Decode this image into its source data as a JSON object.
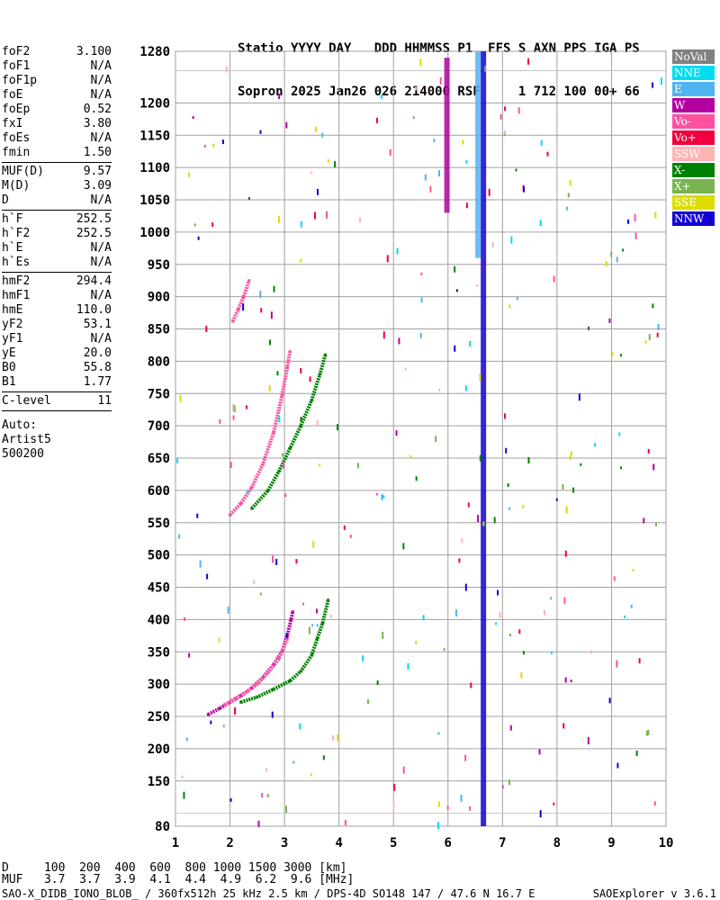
{
  "header": {
    "line1": "Statio YYYY DAY   DDD HHMMSS P1  FFS S AXN PPS IGA PS",
    "line2": "Sopron 2025 Jan26 026 214000 RSF     1 712 100 00+ 66"
  },
  "params": [
    {
      "k": "foF2",
      "v": "3.100"
    },
    {
      "k": "foF1",
      "v": "N/A"
    },
    {
      "k": "foF1p",
      "v": "N/A"
    },
    {
      "k": "foE",
      "v": "N/A"
    },
    {
      "k": "foEp",
      "v": "0.52"
    },
    {
      "k": "fxI",
      "v": "3.80"
    },
    {
      "k": "foEs",
      "v": "N/A"
    },
    {
      "k": "fmin",
      "v": "1.50"
    },
    {
      "k": "MUF(D)",
      "v": "9.57"
    },
    {
      "k": "M(D)",
      "v": "3.09"
    },
    {
      "k": "D",
      "v": "N/A"
    },
    {
      "k": "h`F",
      "v": "252.5"
    },
    {
      "k": "h`F2",
      "v": "252.5"
    },
    {
      "k": "h`E",
      "v": "N/A"
    },
    {
      "k": "h`Es",
      "v": "N/A"
    },
    {
      "k": "hmF2",
      "v": "294.4"
    },
    {
      "k": "hmF1",
      "v": "N/A"
    },
    {
      "k": "hmE",
      "v": "110.0"
    },
    {
      "k": "yF2",
      "v": "53.1"
    },
    {
      "k": "yF1",
      "v": "N/A"
    },
    {
      "k": "yE",
      "v": "20.0"
    },
    {
      "k": "B0",
      "v": "55.8"
    },
    {
      "k": "B1",
      "v": "1.77"
    },
    {
      "k": "C-level",
      "v": "11"
    }
  ],
  "auto": {
    "l1": "Auto:",
    "l2": "Artist5",
    "l3": "500200"
  },
  "legend": [
    {
      "label": "NoVal",
      "color": "#808080"
    },
    {
      "label": "NNE",
      "color": "#00dcf0"
    },
    {
      "label": "E",
      "color": "#50b4f0"
    },
    {
      "label": "W",
      "color": "#b400a0"
    },
    {
      "label": "Vo-",
      "color": "#ff50a0"
    },
    {
      "label": "Vo+",
      "color": "#f0003c"
    },
    {
      "label": "SSW",
      "color": "#ffb4b4"
    },
    {
      "label": "X-",
      "color": "#008200"
    },
    {
      "label": "X+",
      "color": "#78b450"
    },
    {
      "label": "SSE",
      "color": "#dcdc00"
    },
    {
      "label": "NNW",
      "color": "#1400d2"
    }
  ],
  "footer": {
    "line_d": "D     100  200  400  600  800 1000 1500 3000 [km]",
    "line_muf": "MUF   3.7  3.7  3.9  4.1  4.4  4.9  6.2  9.6 [MHz]",
    "line_info": "SAO-X_DIDB_IONO_BLOB_ / 360fx512h 25 kHz 2.5 km / DPS-4D SO148 147 / 47.6 N 16.7 E",
    "version": "SAOExplorer v 3.6.1"
  },
  "chart_data": {
    "type": "scatter",
    "xlim": [
      1,
      10
    ],
    "ylim": [
      80,
      1280
    ],
    "x_ticks": [
      "1",
      "2",
      "3",
      "4",
      "5",
      "6",
      "7",
      "8",
      "9",
      "10"
    ],
    "y_ticks": [
      "80",
      "150",
      "200",
      "250",
      "300",
      "350",
      "400",
      "450",
      "500",
      "550",
      "600",
      "650",
      "700",
      "750",
      "800",
      "850",
      "900",
      "950",
      "1000",
      "1050",
      "1100",
      "1150",
      "1200",
      "1280"
    ],
    "grid": true,
    "traces": [
      {
        "name": "O-trace F2 low",
        "color": "#b400a0",
        "points": [
          [
            1.6,
            253
          ],
          [
            1.8,
            262
          ],
          [
            2.0,
            272
          ],
          [
            2.2,
            282
          ],
          [
            2.4,
            294
          ],
          [
            2.6,
            310
          ],
          [
            2.8,
            330
          ],
          [
            2.95,
            350
          ],
          [
            3.05,
            375
          ],
          [
            3.12,
            400
          ],
          [
            3.15,
            412
          ]
        ]
      },
      {
        "name": "O-trace F2 low inner",
        "color": "#ff50a0",
        "points": [
          [
            1.9,
            268
          ],
          [
            2.1,
            278
          ],
          [
            2.3,
            288
          ],
          [
            2.5,
            300
          ],
          [
            2.7,
            318
          ],
          [
            2.9,
            340
          ],
          [
            3.05,
            370
          ]
        ]
      },
      {
        "name": "X-trace F2 low",
        "color": "#008200",
        "points": [
          [
            2.2,
            272
          ],
          [
            2.5,
            280
          ],
          [
            2.8,
            292
          ],
          [
            3.1,
            305
          ],
          [
            3.3,
            320
          ],
          [
            3.5,
            345
          ],
          [
            3.6,
            370
          ],
          [
            3.7,
            395
          ],
          [
            3.8,
            430
          ]
        ]
      },
      {
        "name": "O-trace F2 mid",
        "color": "#ff50a0",
        "points": [
          [
            2.0,
            562
          ],
          [
            2.2,
            580
          ],
          [
            2.4,
            605
          ],
          [
            2.6,
            640
          ],
          [
            2.8,
            690
          ],
          [
            2.95,
            745
          ],
          [
            3.05,
            790
          ],
          [
            3.1,
            815
          ]
        ]
      },
      {
        "name": "X-trace F2 mid",
        "color": "#008200",
        "points": [
          [
            2.4,
            572
          ],
          [
            2.7,
            600
          ],
          [
            2.9,
            630
          ],
          [
            3.1,
            665
          ],
          [
            3.3,
            700
          ],
          [
            3.5,
            740
          ],
          [
            3.65,
            780
          ],
          [
            3.75,
            810
          ]
        ]
      },
      {
        "name": "O-trace F2 high",
        "color": "#ff50a0",
        "points": [
          [
            2.05,
            862
          ],
          [
            2.15,
            880
          ],
          [
            2.25,
            900
          ],
          [
            2.35,
            925
          ]
        ]
      }
    ],
    "columns": [
      {
        "name": "strong column",
        "color": "#1400d2",
        "x": 6.65,
        "y1": 80,
        "y2": 1280
      },
      {
        "name": "strong column inner",
        "color": "#50b4f0",
        "x": 6.55,
        "y1": 960,
        "y2": 1280
      },
      {
        "name": "column at 6",
        "color": "#b400a0",
        "x": 5.98,
        "y1": 1030,
        "y2": 1270
      }
    ]
  }
}
